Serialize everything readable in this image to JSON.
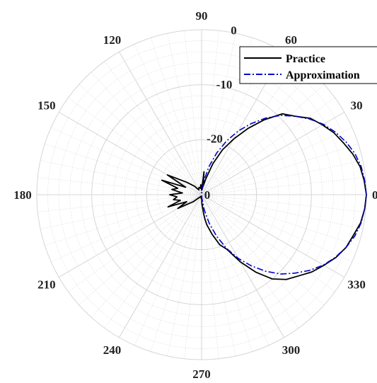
{
  "chart_data": {
    "type": "polar-line",
    "angle_unit": "deg",
    "radial_range": [
      -30,
      0
    ],
    "radial_ticks": [
      "-30",
      "-20",
      "-10",
      "0"
    ],
    "radial_tick_labels": [
      {
        "value": -20,
        "text": "-20"
      },
      {
        "value": -10,
        "text": "-10"
      },
      {
        "value": 0,
        "text": "0"
      }
    ],
    "angle_tick_labels": [
      "0",
      "30",
      "60",
      "90",
      "120",
      "150",
      "180",
      "210",
      "240",
      "270",
      "300",
      "330"
    ],
    "grid": true,
    "minor_grid": true,
    "legend_position": "top-right",
    "series": [
      {
        "name": "Practice",
        "color": "#000000",
        "dash": "solid",
        "angles": [
          0,
          5,
          10,
          15,
          20,
          25,
          30,
          35,
          40,
          45,
          50,
          55,
          60,
          65,
          70,
          75,
          80,
          82,
          84,
          86,
          88,
          90,
          95,
          100,
          110,
          120,
          130,
          140,
          150,
          155,
          160,
          165,
          170,
          175,
          180,
          185,
          190,
          195,
          200,
          205,
          210,
          220,
          230,
          240,
          250,
          260,
          265,
          270,
          272,
          274,
          276,
          278,
          280,
          285,
          290,
          295,
          300,
          305,
          310,
          315,
          320,
          325,
          330,
          335,
          340,
          345,
          350,
          355,
          360
        ],
        "values": [
          0,
          -0.3,
          -0.7,
          -1.5,
          -2.5,
          -3.4,
          -4.6,
          -5.8,
          -7.8,
          -9.2,
          -12.2,
          -15.3,
          -18.3,
          -21.0,
          -24.0,
          -27.0,
          -28.5,
          -27.6,
          -25.8,
          -28.4,
          -28.2,
          -29.2,
          -28.2,
          -28.8,
          -28.6,
          -29.0,
          -28.0,
          -26.5,
          -22.8,
          -26.8,
          -22.3,
          -25.5,
          -24.5,
          -26.5,
          -24.2,
          -25.5,
          -24.8,
          -26.0,
          -23.5,
          -27.0,
          -25.0,
          -28.0,
          -29.3,
          -29.5,
          -29.7,
          -29.5,
          -29.3,
          -29.5,
          -28.3,
          -27.8,
          -26.6,
          -25.4,
          -24.4,
          -22.5,
          -20.3,
          -19.0,
          -15.9,
          -12.8,
          -10.0,
          -8.2,
          -7.0,
          -5.5,
          -4.3,
          -3.0,
          -2.0,
          -1.4,
          -0.6,
          -0.2,
          0
        ]
      },
      {
        "name": "Approximation",
        "color": "#0000cc",
        "dash": "dashdot",
        "angles": [
          0,
          5,
          10,
          15,
          20,
          25,
          30,
          35,
          40,
          45,
          50,
          55,
          60,
          65,
          70,
          75,
          80,
          85,
          88,
          90,
          270,
          272,
          275,
          280,
          285,
          290,
          295,
          300,
          305,
          310,
          315,
          320,
          325,
          330,
          335,
          340,
          345,
          350,
          355,
          360
        ],
        "values": [
          0,
          -0.2,
          -0.5,
          -1.1,
          -2.0,
          -3.1,
          -4.4,
          -6.0,
          -7.8,
          -9.6,
          -11.8,
          -14.2,
          -16.6,
          -19.2,
          -21.9,
          -24.6,
          -27.2,
          -29.4,
          -29.9,
          -30.0,
          -30.0,
          -29.9,
          -29.4,
          -27.2,
          -24.6,
          -21.9,
          -19.2,
          -16.6,
          -14.2,
          -11.8,
          -9.6,
          -7.8,
          -6.0,
          -4.4,
          -3.1,
          -2.0,
          -1.1,
          -0.5,
          -0.2,
          0
        ]
      }
    ]
  }
}
